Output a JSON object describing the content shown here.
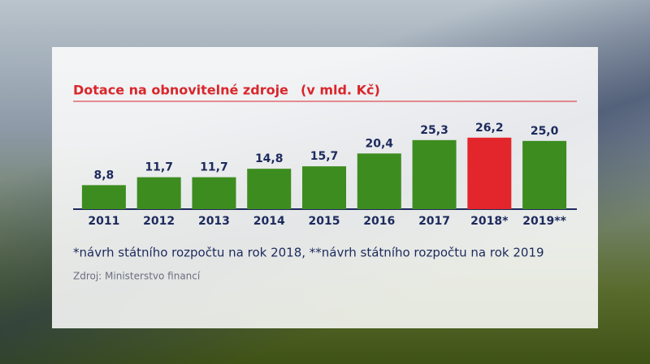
{
  "chart_data": {
    "type": "bar",
    "title": "Dotace na obnovitelné zdroje",
    "subtitle": "(v mld. Kč)",
    "categories": [
      "2011",
      "2012",
      "2013",
      "2014",
      "2015",
      "2016",
      "2017",
      "2018*",
      "2019**"
    ],
    "values": [
      8.8,
      11.7,
      11.7,
      14.8,
      15.7,
      20.4,
      25.3,
      26.2,
      25.0
    ],
    "value_labels": [
      "8,8",
      "11,7",
      "11,7",
      "14,8",
      "15,7",
      "20,4",
      "25,3",
      "26,2",
      "25,0"
    ],
    "colors": [
      "#3d8c1f",
      "#3d8c1f",
      "#3d8c1f",
      "#3d8c1f",
      "#3d8c1f",
      "#3d8c1f",
      "#3d8c1f",
      "#e3262b",
      "#3d8c1f"
    ],
    "ylim": [
      0,
      30
    ],
    "footnote": "*návrh státního rozpočtu na rok 2018, **návrh státního rozpočtu na rok 2019",
    "source": "Zdroj: Ministerstvo financí"
  }
}
